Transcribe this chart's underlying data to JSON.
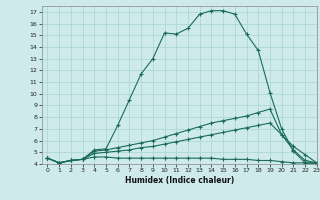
{
  "title": "",
  "xlabel": "Humidex (Indice chaleur)",
  "bg_color": "#ceeaea",
  "grid_color": "#a8d4d4",
  "line_color": "#1a6b5a",
  "xlim": [
    -0.5,
    23
  ],
  "ylim": [
    4,
    17.5
  ],
  "xticks": [
    0,
    1,
    2,
    3,
    4,
    5,
    6,
    7,
    8,
    9,
    10,
    11,
    12,
    13,
    14,
    15,
    16,
    17,
    18,
    19,
    20,
    21,
    22,
    23
  ],
  "yticks": [
    4,
    5,
    6,
    7,
    8,
    9,
    10,
    11,
    12,
    13,
    14,
    15,
    16,
    17
  ],
  "curve1_x": [
    0,
    1,
    2,
    3,
    4,
    5,
    6,
    7,
    8,
    9,
    10,
    11,
    12,
    13,
    14,
    15,
    16,
    17,
    18,
    19,
    20,
    21,
    22,
    23
  ],
  "curve1_y": [
    4.5,
    4.1,
    4.3,
    4.4,
    5.2,
    5.3,
    7.3,
    9.5,
    11.7,
    13.0,
    15.2,
    15.1,
    15.6,
    16.8,
    17.1,
    17.1,
    16.8,
    15.1,
    13.7,
    10.1,
    7.0,
    5.1,
    4.1,
    4.1
  ],
  "curve2_x": [
    0,
    1,
    2,
    3,
    4,
    5,
    6,
    7,
    8,
    9,
    10,
    11,
    12,
    13,
    14,
    15,
    16,
    17,
    18,
    19,
    20,
    21,
    22,
    23
  ],
  "curve2_y": [
    4.5,
    4.1,
    4.3,
    4.4,
    5.1,
    5.2,
    5.4,
    5.6,
    5.8,
    6.0,
    6.3,
    6.6,
    6.9,
    7.2,
    7.5,
    7.7,
    7.9,
    8.1,
    8.4,
    8.7,
    6.5,
    5.2,
    4.3,
    4.1
  ],
  "curve3_x": [
    0,
    1,
    2,
    3,
    4,
    5,
    6,
    7,
    8,
    9,
    10,
    11,
    12,
    13,
    14,
    15,
    16,
    17,
    18,
    19,
    20,
    21,
    22,
    23
  ],
  "curve3_y": [
    4.5,
    4.1,
    4.3,
    4.4,
    4.9,
    5.0,
    5.1,
    5.2,
    5.4,
    5.5,
    5.7,
    5.9,
    6.1,
    6.3,
    6.5,
    6.7,
    6.9,
    7.1,
    7.3,
    7.5,
    6.5,
    5.5,
    4.8,
    4.1
  ],
  "curve4_x": [
    0,
    1,
    2,
    3,
    4,
    5,
    6,
    7,
    8,
    9,
    10,
    11,
    12,
    13,
    14,
    15,
    16,
    17,
    18,
    19,
    20,
    21,
    22,
    23
  ],
  "curve4_y": [
    4.5,
    4.1,
    4.3,
    4.4,
    4.6,
    4.6,
    4.5,
    4.5,
    4.5,
    4.5,
    4.5,
    4.5,
    4.5,
    4.5,
    4.5,
    4.4,
    4.4,
    4.4,
    4.3,
    4.3,
    4.2,
    4.1,
    4.1,
    4.0
  ]
}
